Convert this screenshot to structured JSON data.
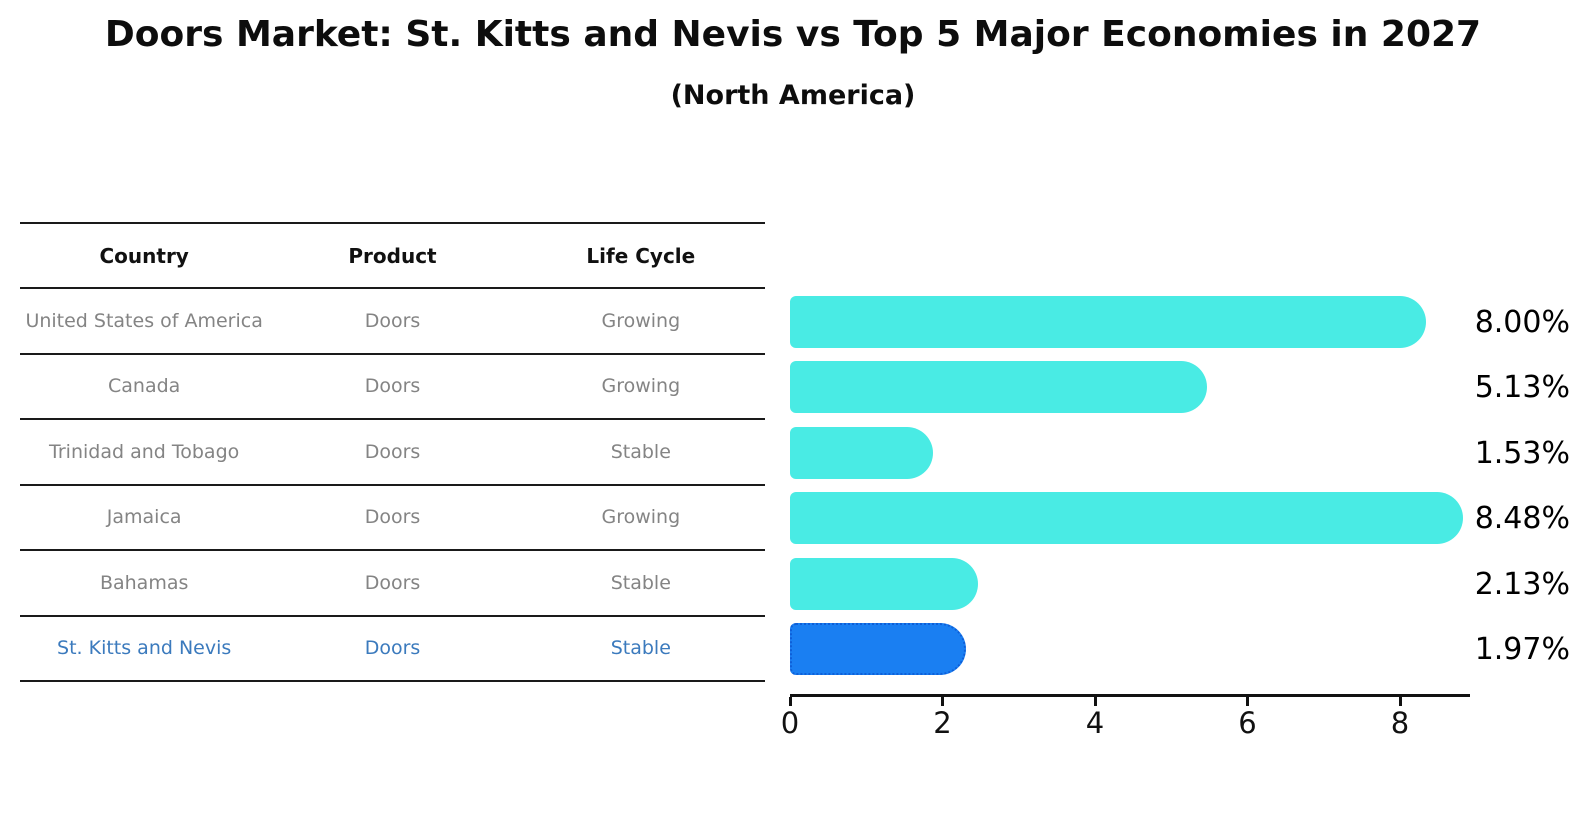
{
  "title": "Doors Market: St. Kitts and Nevis vs Top 5 Major Economies in 2027",
  "subtitle": "(North America)",
  "table": {
    "headers": [
      "Country",
      "Product",
      "Life Cycle"
    ],
    "rows": [
      {
        "country": "United States of America",
        "product": "Doors",
        "life_cycle": "Growing",
        "highlight": false
      },
      {
        "country": "Canada",
        "product": "Doors",
        "life_cycle": "Growing",
        "highlight": false
      },
      {
        "country": "Trinidad and Tobago",
        "product": "Doors",
        "life_cycle": "Stable",
        "highlight": false
      },
      {
        "country": "Jamaica",
        "product": "Doors",
        "life_cycle": "Growing",
        "highlight": false
      },
      {
        "country": "Bahamas",
        "product": "Doors",
        "life_cycle": "Stable",
        "highlight": false
      },
      {
        "country": "St. Kitts and Nevis",
        "product": "Doors",
        "life_cycle": "Stable",
        "highlight": true
      }
    ]
  },
  "chart_data": {
    "type": "bar",
    "orientation": "horizontal",
    "title": "Doors Market: St. Kitts and Nevis vs Top 5 Major Economies in 2027",
    "subtitle": "(North America)",
    "categories": [
      "United States of America",
      "Canada",
      "Trinidad and Tobago",
      "Jamaica",
      "Bahamas",
      "St. Kitts and Nevis"
    ],
    "values": [
      8.0,
      5.13,
      1.53,
      8.48,
      2.13,
      1.97
    ],
    "value_labels": [
      "8.00%",
      "5.13%",
      "1.53%",
      "8.48%",
      "2.13%",
      "1.97%"
    ],
    "highlight_index": 5,
    "x_ticks": [
      "0",
      "2",
      "4",
      "6",
      "8"
    ],
    "xlim": [
      0,
      8.9
    ],
    "grid": false,
    "legend": false,
    "bar_color": "#49ebe4",
    "highlight_bar_color": "#1a7ff2",
    "highlight_text_color": "#3b7abd",
    "text_color_muted": "#848484",
    "axis_color": "#111111"
  }
}
